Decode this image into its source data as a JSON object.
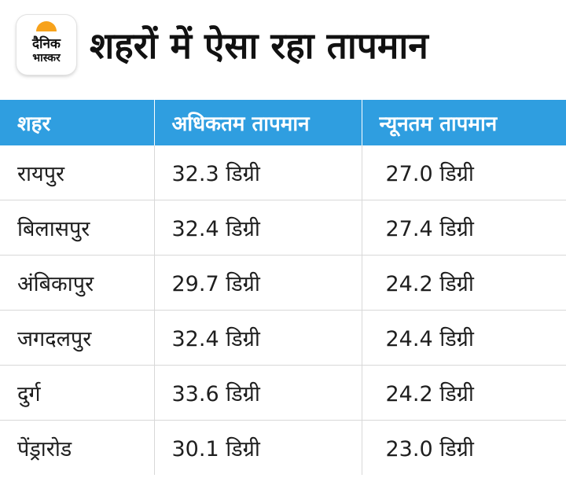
{
  "logo": {
    "line1": "दैनिक",
    "line2": "भास्कर",
    "accent": "#f7a21b"
  },
  "title": "शहरों में ऐसा रहा तापमान",
  "table": {
    "header_color": "#2f9ee0",
    "headers": [
      "शहर",
      "अधिकतम तापमान",
      "न्यूनतम तापमान"
    ],
    "rows": [
      [
        "रायपुर",
        "32.3 डिग्री",
        "27.0 डिग्री"
      ],
      [
        "बिलासपुर",
        "32.4 डिग्री",
        "27.4 डिग्री"
      ],
      [
        "अंबिकापुर",
        "29.7 डिग्री",
        "24.2 डिग्री"
      ],
      [
        "जगदलपुर",
        "32.4 डिग्री",
        "24.4 डिग्री"
      ],
      [
        "दुर्ग",
        "33.6 डिग्री",
        "24.2 डिग्री"
      ],
      [
        "पेंड्रारोड",
        "30.1 डिग्री",
        "23.0 डिग्री"
      ]
    ]
  }
}
